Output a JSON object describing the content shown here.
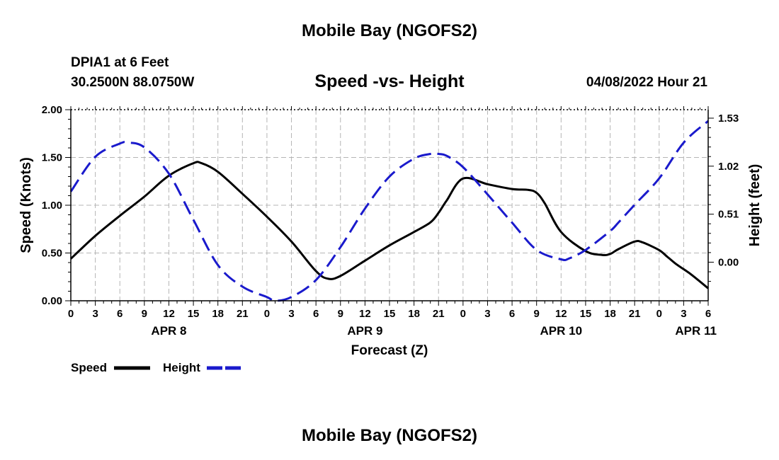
{
  "header": {
    "title": "Mobile Bay (NGOFS2)",
    "station": "DPIA1 at 6 Feet",
    "coords": "30.2500N  88.0750W",
    "datetime": "04/08/2022 Hour 21"
  },
  "footer": {
    "title": "Mobile Bay (NGOFS2)"
  },
  "chart_data": {
    "type": "line",
    "title": "Speed -vs- Height",
    "xlabel": "Forecast (Z)",
    "ylabel": "Speed (Knots)",
    "y2label": "Height (feet)",
    "xlim": [
      0,
      78
    ],
    "ylim": [
      0,
      2.0
    ],
    "y2lim": [
      -0.41,
      1.62
    ],
    "x_ticks": [
      0,
      3,
      6,
      9,
      12,
      15,
      18,
      21,
      24,
      27,
      30,
      33,
      36,
      39,
      42,
      45,
      48,
      51,
      54,
      57,
      60,
      63,
      66,
      69,
      72,
      75,
      78
    ],
    "x_tick_labels": [
      "0",
      "3",
      "6",
      "9",
      "12",
      "15",
      "18",
      "21",
      "0",
      "3",
      "6",
      "9",
      "12",
      "15",
      "18",
      "21",
      "0",
      "3",
      "6",
      "9",
      "12",
      "15",
      "18",
      "21",
      "0",
      "3",
      "6"
    ],
    "y_ticks": [
      0,
      0.5,
      1.0,
      1.5,
      2.0
    ],
    "y_tick_labels": [
      "0.00",
      "0.50",
      "1.00",
      "1.50",
      "2.00"
    ],
    "y2_ticks": [
      0.0,
      0.51,
      1.02,
      1.53
    ],
    "y2_tick_labels": [
      "0.00",
      "0.51",
      "1.02",
      "1.53"
    ],
    "date_labels": [
      {
        "x": 12,
        "label": "APR 8"
      },
      {
        "x": 36,
        "label": "APR 9"
      },
      {
        "x": 60,
        "label": "APR 10"
      },
      {
        "x": 76.5,
        "label": "APR 11"
      }
    ],
    "grid": true,
    "legend_position": "bottom-left",
    "series": [
      {
        "name": "Speed",
        "axis": "left",
        "color": "#000000",
        "style": "solid",
        "x": [
          0,
          3,
          6,
          9,
          12,
          15,
          16,
          18,
          21,
          24,
          27,
          30,
          31.5,
          33,
          36,
          39,
          42,
          44,
          45,
          46,
          48,
          51,
          54,
          56,
          57,
          58,
          60,
          63,
          65,
          66,
          67,
          69,
          70,
          72,
          73,
          74,
          75,
          76,
          78
        ],
        "values": [
          0.44,
          0.68,
          0.89,
          1.09,
          1.31,
          1.44,
          1.44,
          1.35,
          1.12,
          0.88,
          0.62,
          0.31,
          0.23,
          0.26,
          0.42,
          0.58,
          0.72,
          0.82,
          0.92,
          1.05,
          1.28,
          1.22,
          1.17,
          1.16,
          1.13,
          1.02,
          0.72,
          0.52,
          0.48,
          0.49,
          0.54,
          0.62,
          0.61,
          0.53,
          0.46,
          0.39,
          0.33,
          0.27,
          0.13
        ]
      },
      {
        "name": "Height",
        "axis": "right",
        "color": "#1a1acc",
        "style": "dashed",
        "x": [
          0,
          3,
          6,
          7,
          9,
          12,
          15,
          18,
          21,
          24,
          25,
          27,
          30,
          33,
          36,
          39,
          42,
          44,
          45,
          46,
          48,
          51,
          54,
          57,
          60,
          61,
          63,
          66,
          67,
          69,
          72,
          75,
          78
        ],
        "values": [
          0.75,
          1.12,
          1.26,
          1.27,
          1.22,
          0.94,
          0.45,
          -0.03,
          -0.26,
          -0.37,
          -0.41,
          -0.37,
          -0.19,
          0.16,
          0.57,
          0.91,
          1.1,
          1.15,
          1.15,
          1.13,
          1.01,
          0.72,
          0.42,
          0.13,
          0.03,
          0.04,
          0.13,
          0.33,
          0.42,
          0.61,
          0.89,
          1.27,
          1.5
        ]
      }
    ]
  }
}
